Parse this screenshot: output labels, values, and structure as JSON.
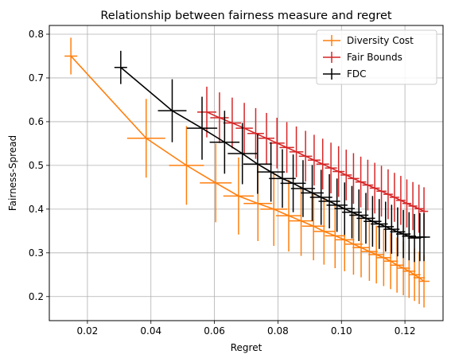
{
  "chart_data": {
    "type": "line",
    "title": "Relationship between fairness measure and regret",
    "xlabel": "Regret",
    "ylabel": "Fairness-Spread",
    "xlim": [
      0.008,
      0.132
    ],
    "ylim": [
      0.145,
      0.82
    ],
    "xticks": [
      "0.02",
      "0.04",
      "0.06",
      "0.08",
      "0.10",
      "0.12"
    ],
    "xtick_values": [
      0.02,
      0.04,
      0.06,
      0.08,
      0.1,
      0.12
    ],
    "yticks": [
      "0.2",
      "0.3",
      "0.4",
      "0.5",
      "0.6",
      "0.7",
      "0.8"
    ],
    "ytick_values": [
      0.2,
      0.3,
      0.4,
      0.5,
      0.6,
      0.7,
      0.8
    ],
    "grid": true,
    "legend": "top-right",
    "series": [
      {
        "name": "Diversity Cost",
        "color": "#ff7f0e",
        "x": [
          0.0148,
          0.0385,
          0.0512,
          0.0604,
          0.0676,
          0.0737,
          0.0787,
          0.0834,
          0.0873,
          0.0912,
          0.0945,
          0.098,
          0.101,
          0.1038,
          0.1062,
          0.1088,
          0.111,
          0.1133,
          0.1155,
          0.1175,
          0.1195,
          0.1213,
          0.123,
          0.1245,
          0.126
        ],
        "y": [
          0.75,
          0.562,
          0.5,
          0.46,
          0.43,
          0.413,
          0.4,
          0.385,
          0.373,
          0.361,
          0.349,
          0.339,
          0.33,
          0.32,
          0.312,
          0.303,
          0.296,
          0.289,
          0.281,
          0.272,
          0.265,
          0.258,
          0.25,
          0.243,
          0.235
        ],
        "xerr": [
          0.002,
          0.006,
          0.0055,
          0.005,
          0.0048,
          0.0045,
          0.0042,
          0.004,
          0.0038,
          0.0036,
          0.0034,
          0.0032,
          0.003,
          0.0029,
          0.0027,
          0.0026,
          0.0025,
          0.0024,
          0.0023,
          0.0022,
          0.0021,
          0.002,
          0.0019,
          0.0018,
          0.0017
        ],
        "yerr": [
          0.042,
          0.09,
          0.09,
          0.09,
          0.088,
          0.086,
          0.084,
          0.082,
          0.08,
          0.078,
          0.076,
          0.074,
          0.072,
          0.07,
          0.068,
          0.067,
          0.066,
          0.065,
          0.064,
          0.063,
          0.062,
          0.061,
          0.06,
          0.06,
          0.06
        ]
      },
      {
        "name": "Fair Bounds",
        "color": "#d62728",
        "x": [
          0.0576,
          0.0616,
          0.0656,
          0.0694,
          0.073,
          0.0764,
          0.0797,
          0.0828,
          0.0858,
          0.0887,
          0.0914,
          0.0941,
          0.0967,
          0.0991,
          0.1015,
          0.1038,
          0.1061,
          0.1083,
          0.1105,
          0.1126,
          0.1147,
          0.1167,
          0.1187,
          0.1206,
          0.1225,
          0.1244,
          0.126
        ],
        "y": [
          0.622,
          0.609,
          0.597,
          0.585,
          0.573,
          0.562,
          0.551,
          0.541,
          0.531,
          0.521,
          0.512,
          0.503,
          0.494,
          0.486,
          0.478,
          0.47,
          0.462,
          0.455,
          0.448,
          0.441,
          0.434,
          0.427,
          0.42,
          0.413,
          0.407,
          0.401,
          0.395
        ],
        "xerr": [
          0.003,
          0.0029,
          0.0028,
          0.0027,
          0.0026,
          0.0025,
          0.0024,
          0.0023,
          0.0022,
          0.0021,
          0.002,
          0.002,
          0.0019,
          0.0019,
          0.0018,
          0.0018,
          0.0017,
          0.0017,
          0.0016,
          0.0016,
          0.0015,
          0.0015,
          0.0015,
          0.0014,
          0.0014,
          0.0014,
          0.0013
        ],
        "yerr": [
          0.058,
          0.058,
          0.058,
          0.058,
          0.058,
          0.058,
          0.058,
          0.058,
          0.058,
          0.058,
          0.058,
          0.058,
          0.058,
          0.058,
          0.058,
          0.058,
          0.058,
          0.058,
          0.058,
          0.058,
          0.057,
          0.056,
          0.056,
          0.055,
          0.055,
          0.055,
          0.055
        ]
      },
      {
        "name": "FDC",
        "color": "#000000",
        "x": [
          0.0305,
          0.0467,
          0.0561,
          0.0632,
          0.0688,
          0.0736,
          0.0778,
          0.0814,
          0.0848,
          0.0879,
          0.0908,
          0.0936,
          0.0962,
          0.0986,
          0.101,
          0.1033,
          0.1055,
          0.1077,
          0.1098,
          0.1119,
          0.1139,
          0.1158,
          0.1177,
          0.1195,
          0.1213,
          0.123,
          0.1247,
          0.126
        ],
        "y": [
          0.724,
          0.625,
          0.585,
          0.553,
          0.527,
          0.503,
          0.485,
          0.47,
          0.459,
          0.447,
          0.437,
          0.427,
          0.418,
          0.409,
          0.401,
          0.393,
          0.386,
          0.379,
          0.372,
          0.366,
          0.36,
          0.354,
          0.348,
          0.343,
          0.338,
          0.334,
          0.336,
          0.336
        ],
        "xerr": [
          0.002,
          0.0045,
          0.0048,
          0.0047,
          0.0046,
          0.0045,
          0.0044,
          0.0042,
          0.004,
          0.0038,
          0.0036,
          0.0035,
          0.0034,
          0.0033,
          0.0032,
          0.0031,
          0.003,
          0.0029,
          0.0028,
          0.0027,
          0.0026,
          0.0025,
          0.0024,
          0.0023,
          0.0022,
          0.0021,
          0.002,
          0.0019
        ],
        "yerr": [
          0.038,
          0.072,
          0.072,
          0.072,
          0.07,
          0.068,
          0.068,
          0.067,
          0.066,
          0.065,
          0.064,
          0.063,
          0.062,
          0.061,
          0.06,
          0.06,
          0.059,
          0.058,
          0.058,
          0.057,
          0.057,
          0.056,
          0.056,
          0.055,
          0.055,
          0.055,
          0.055,
          0.055
        ]
      }
    ]
  }
}
